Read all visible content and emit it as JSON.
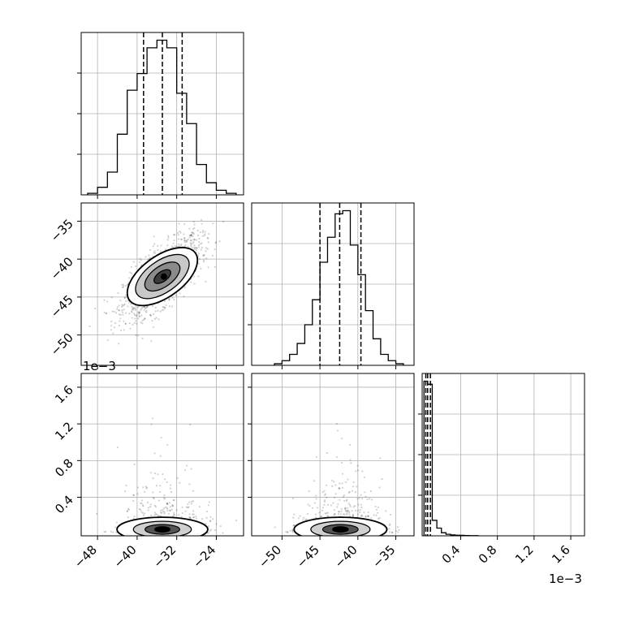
{
  "chart_data": {
    "type": "corner",
    "title": "",
    "n_params": 3,
    "panels": [
      {
        "id": "hist-p1",
        "type": "histogram",
        "row": 0,
        "col": 0,
        "xlim": [
          -51.3,
          -18.5
        ],
        "bin_edges": [
          -50,
          -48,
          -46,
          -44,
          -42,
          -40,
          -38,
          -36,
          -34,
          -32,
          -30,
          -28,
          -26,
          -24,
          -22,
          -20
        ],
        "counts": [
          0.01,
          0.05,
          0.15,
          0.4,
          0.69,
          0.8,
          0.97,
          1.02,
          0.97,
          0.67,
          0.47,
          0.2,
          0.08,
          0.03,
          0.01
        ],
        "quantiles": [
          -38.7,
          -34.9,
          -30.9
        ]
      },
      {
        "id": "scatter-p1-p2",
        "type": "scatter-contour",
        "row": 1,
        "col": 0,
        "xlim": [
          -51.3,
          -18.5
        ],
        "ylim": [
          -54,
          -32.6
        ],
        "center": [
          -34.9,
          -42.3
        ],
        "sd": [
          3.9,
          2.6
        ],
        "rho": 0.7,
        "n_points": 1500,
        "hist_peak": [
          -34.6,
          -42.3
        ]
      },
      {
        "id": "hist-p2",
        "type": "histogram",
        "row": 1,
        "col": 1,
        "xlim": [
          -54,
          -32.6
        ],
        "bin_edges": [
          -51,
          -50,
          -49,
          -48,
          -47,
          -46,
          -45,
          -44,
          -43,
          -42,
          -41,
          -40,
          -39,
          -38,
          -37,
          -36,
          -35,
          -34
        ],
        "counts": [
          0.01,
          0.03,
          0.07,
          0.14,
          0.26,
          0.42,
          0.66,
          0.82,
          0.97,
          0.99,
          0.77,
          0.58,
          0.35,
          0.17,
          0.07,
          0.03,
          0.01
        ],
        "quantiles": [
          -45.0,
          -42.4,
          -39.6
        ]
      },
      {
        "id": "scatter-p1-p3",
        "type": "scatter-contour",
        "row": 2,
        "col": 0,
        "xlim": [
          -51.3,
          -18.5
        ],
        "ylim": [
          -0.02,
          1.75
        ],
        "center": [
          -34.9,
          0.05
        ],
        "sd": [
          3.9,
          0.03
        ],
        "tail": true,
        "n_points": 1300
      },
      {
        "id": "scatter-p2-p3",
        "type": "scatter-contour",
        "row": 2,
        "col": 1,
        "xlim": [
          -54,
          -32.6
        ],
        "ylim": [
          -0.02,
          1.75
        ],
        "center": [
          -42.3,
          0.05
        ],
        "sd": [
          2.6,
          0.03
        ],
        "tail": true,
        "n_points": 1300
      },
      {
        "id": "hist-p3",
        "type": "histogram",
        "row": 2,
        "col": 2,
        "xlim": [
          -0.02,
          1.75
        ],
        "bin_edges": [
          0.0,
          0.04,
          0.09,
          0.14,
          0.19,
          0.24,
          0.29,
          0.34,
          0.39,
          0.44,
          0.49,
          0.54,
          0.59
        ],
        "counts": [
          1.0,
          0.98,
          0.1,
          0.05,
          0.02,
          0.01,
          0.006,
          0.004,
          0.003,
          0.002,
          0.001,
          0.001
        ],
        "quantiles": [
          0.02,
          0.04,
          0.07
        ]
      }
    ],
    "axes": {
      "p1": {
        "ticks": [
          -48,
          -40,
          -32,
          -24
        ],
        "tick_labels": [
          "−48",
          "−40",
          "−32",
          "−24"
        ]
      },
      "p2": {
        "ticks": [
          -50,
          -45,
          -40,
          -35
        ],
        "tick_labels": [
          "−50",
          "−45",
          "−40",
          "−35"
        ]
      },
      "p2_y": {
        "ticks": [
          -35,
          -40,
          -45,
          -50
        ],
        "tick_labels": [
          "−35",
          "−40",
          "−45",
          "−50"
        ]
      },
      "p3_y": {
        "ticks": [
          0.4,
          0.8,
          1.2,
          1.6
        ],
        "tick_labels": [
          "0.4",
          "0.8",
          "1.2",
          "1.6"
        ]
      },
      "p3": {
        "ticks": [
          0.4,
          0.8,
          1.2,
          1.6
        ],
        "tick_labels": [
          "0.4",
          "0.8",
          "1.2",
          "1.6"
        ]
      }
    },
    "offset_labels": {
      "p3_y": "1e−3",
      "p3_x": "1e−3"
    },
    "grid": true,
    "colors": {
      "line": "#000000",
      "grid": "#b0b0b0",
      "points": "#000000"
    }
  }
}
